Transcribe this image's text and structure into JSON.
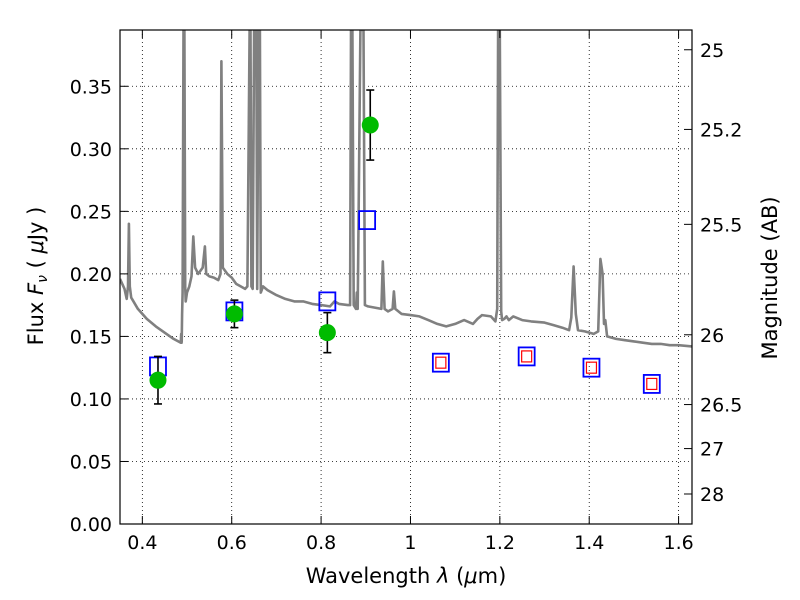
{
  "chart_data": {
    "type": "scatter",
    "title": "",
    "xlabel_parts": {
      "prefix": "Wavelength  ",
      "var": "λ",
      "suffix": " (",
      "mu": "μ",
      "unit": "m)"
    },
    "ylabel_parts": {
      "prefix": "Flux  ",
      "var": "F",
      "sub": "ν",
      "suffix": "  ( ",
      "mu": "μ",
      "unit": "Jy )"
    },
    "y2label": "Magnitude (AB)",
    "xlim": [
      0.35,
      1.63
    ],
    "ylim": [
      0.0,
      0.395
    ],
    "grid": true,
    "legend": "none",
    "x_ticks": [
      0.4,
      0.6,
      0.8,
      1.0,
      1.2,
      1.4,
      1.6
    ],
    "x_tick_labels": [
      "0.4",
      "0.6",
      "0.8",
      "1",
      "1.2",
      "1.4",
      "1.6"
    ],
    "y_ticks": [
      0.0,
      0.05,
      0.1,
      0.15,
      0.2,
      0.25,
      0.3,
      0.35
    ],
    "y_tick_labels": [
      "0.00",
      "0.05",
      "0.10",
      "0.15",
      "0.20",
      "0.25",
      "0.30",
      "0.35"
    ],
    "y2_ticks": [
      {
        "flux": 0.3792,
        "label": "25"
      },
      {
        "flux": 0.3155,
        "label": "25.2"
      },
      {
        "flux": 0.2396,
        "label": "25.5"
      },
      {
        "flux": 0.1513,
        "label": "26"
      },
      {
        "flux": 0.0955,
        "label": "26.5"
      },
      {
        "flux": 0.0603,
        "label": "27"
      },
      {
        "flux": 0.024,
        "label": "28"
      }
    ],
    "colors": {
      "spectrum": "#808080",
      "observed": "#00bb00",
      "model_open": "#0000ff",
      "model_inner": "#ff0000",
      "errorbar": "#000000"
    },
    "observed_photometry": [
      {
        "x": 0.435,
        "y": 0.115,
        "yerr": 0.019
      },
      {
        "x": 0.606,
        "y": 0.168,
        "yerr": 0.011
      },
      {
        "x": 0.814,
        "y": 0.153,
        "yerr": 0.016
      },
      {
        "x": 0.91,
        "y": 0.319,
        "yerr": 0.028
      }
    ],
    "model_photometry_open": [
      {
        "x": 0.435,
        "y": 0.126
      },
      {
        "x": 0.606,
        "y": 0.17
      },
      {
        "x": 0.814,
        "y": 0.178
      },
      {
        "x": 0.903,
        "y": 0.243
      }
    ],
    "model_photometry_nested": [
      {
        "x": 1.068,
        "y": 0.129
      },
      {
        "x": 1.26,
        "y": 0.134
      },
      {
        "x": 1.405,
        "y": 0.125
      },
      {
        "x": 1.54,
        "y": 0.112
      }
    ],
    "spectrum": [
      [
        0.35,
        0.196
      ],
      [
        0.36,
        0.188
      ],
      [
        0.365,
        0.18
      ],
      [
        0.368,
        0.19
      ],
      [
        0.37,
        0.24
      ],
      [
        0.372,
        0.19
      ],
      [
        0.375,
        0.181
      ],
      [
        0.39,
        0.172
      ],
      [
        0.41,
        0.164
      ],
      [
        0.43,
        0.158
      ],
      [
        0.45,
        0.153
      ],
      [
        0.47,
        0.148
      ],
      [
        0.486,
        0.145
      ],
      [
        0.487,
        0.152
      ],
      [
        0.488,
        0.145
      ],
      [
        0.489,
        0.168
      ],
      [
        0.49,
        0.185
      ],
      [
        0.492,
        0.395
      ],
      [
        0.494,
        0.395
      ],
      [
        0.496,
        0.19
      ],
      [
        0.497,
        0.178
      ],
      [
        0.5,
        0.185
      ],
      [
        0.505,
        0.19
      ],
      [
        0.51,
        0.198
      ],
      [
        0.514,
        0.23
      ],
      [
        0.518,
        0.205
      ],
      [
        0.525,
        0.2
      ],
      [
        0.535,
        0.205
      ],
      [
        0.54,
        0.222
      ],
      [
        0.543,
        0.2
      ],
      [
        0.55,
        0.198
      ],
      [
        0.56,
        0.197
      ],
      [
        0.57,
        0.195
      ],
      [
        0.575,
        0.2
      ],
      [
        0.577,
        0.37
      ],
      [
        0.58,
        0.205
      ],
      [
        0.59,
        0.2
      ],
      [
        0.6,
        0.197
      ],
      [
        0.61,
        0.192
      ],
      [
        0.62,
        0.19
      ],
      [
        0.63,
        0.188
      ],
      [
        0.635,
        0.19
      ],
      [
        0.64,
        0.395
      ],
      [
        0.642,
        0.395
      ],
      [
        0.644,
        0.19
      ],
      [
        0.647,
        0.188
      ],
      [
        0.65,
        0.395
      ],
      [
        0.653,
        0.395
      ],
      [
        0.655,
        0.395
      ],
      [
        0.657,
        0.188
      ],
      [
        0.66,
        0.395
      ],
      [
        0.663,
        0.395
      ],
      [
        0.665,
        0.185
      ],
      [
        0.67,
        0.19
      ],
      [
        0.68,
        0.187
      ],
      [
        0.7,
        0.183
      ],
      [
        0.72,
        0.18
      ],
      [
        0.74,
        0.178
      ],
      [
        0.76,
        0.178
      ],
      [
        0.78,
        0.176
      ],
      [
        0.8,
        0.175
      ],
      [
        0.82,
        0.174
      ],
      [
        0.83,
        0.178
      ],
      [
        0.84,
        0.176
      ],
      [
        0.86,
        0.175
      ],
      [
        0.865,
        0.175
      ],
      [
        0.867,
        0.395
      ],
      [
        0.87,
        0.395
      ],
      [
        0.873,
        0.175
      ],
      [
        0.878,
        0.172
      ],
      [
        0.88,
        0.185
      ],
      [
        0.882,
        0.172
      ],
      [
        0.888,
        0.395
      ],
      [
        0.895,
        0.395
      ],
      [
        0.898,
        0.175
      ],
      [
        0.905,
        0.174
      ],
      [
        0.92,
        0.173
      ],
      [
        0.935,
        0.172
      ],
      [
        0.938,
        0.21
      ],
      [
        0.942,
        0.172
      ],
      [
        0.95,
        0.17
      ],
      [
        0.96,
        0.172
      ],
      [
        0.963,
        0.186
      ],
      [
        0.966,
        0.172
      ],
      [
        0.98,
        0.168
      ],
      [
        1.0,
        0.167
      ],
      [
        1.02,
        0.166
      ],
      [
        1.04,
        0.163
      ],
      [
        1.06,
        0.16
      ],
      [
        1.08,
        0.158
      ],
      [
        1.1,
        0.16
      ],
      [
        1.12,
        0.163
      ],
      [
        1.14,
        0.16
      ],
      [
        1.15,
        0.164
      ],
      [
        1.16,
        0.167
      ],
      [
        1.18,
        0.166
      ],
      [
        1.19,
        0.162
      ],
      [
        1.194,
        0.172
      ],
      [
        1.196,
        0.395
      ],
      [
        1.2,
        0.395
      ],
      [
        1.203,
        0.17
      ],
      [
        1.205,
        0.163
      ],
      [
        1.21,
        0.164
      ],
      [
        1.215,
        0.166
      ],
      [
        1.22,
        0.163
      ],
      [
        1.23,
        0.166
      ],
      [
        1.25,
        0.163
      ],
      [
        1.27,
        0.162
      ],
      [
        1.3,
        0.161
      ],
      [
        1.32,
        0.159
      ],
      [
        1.34,
        0.157
      ],
      [
        1.355,
        0.155
      ],
      [
        1.36,
        0.165
      ],
      [
        1.365,
        0.206
      ],
      [
        1.37,
        0.168
      ],
      [
        1.375,
        0.155
      ],
      [
        1.39,
        0.154
      ],
      [
        1.41,
        0.152
      ],
      [
        1.42,
        0.154
      ],
      [
        1.425,
        0.212
      ],
      [
        1.43,
        0.2
      ],
      [
        1.433,
        0.16
      ],
      [
        1.436,
        0.163
      ],
      [
        1.44,
        0.15
      ],
      [
        1.46,
        0.148
      ],
      [
        1.48,
        0.147
      ],
      [
        1.5,
        0.146
      ],
      [
        1.52,
        0.145
      ],
      [
        1.54,
        0.144
      ],
      [
        1.56,
        0.144
      ],
      [
        1.58,
        0.143
      ],
      [
        1.6,
        0.143
      ],
      [
        1.63,
        0.142
      ]
    ]
  }
}
